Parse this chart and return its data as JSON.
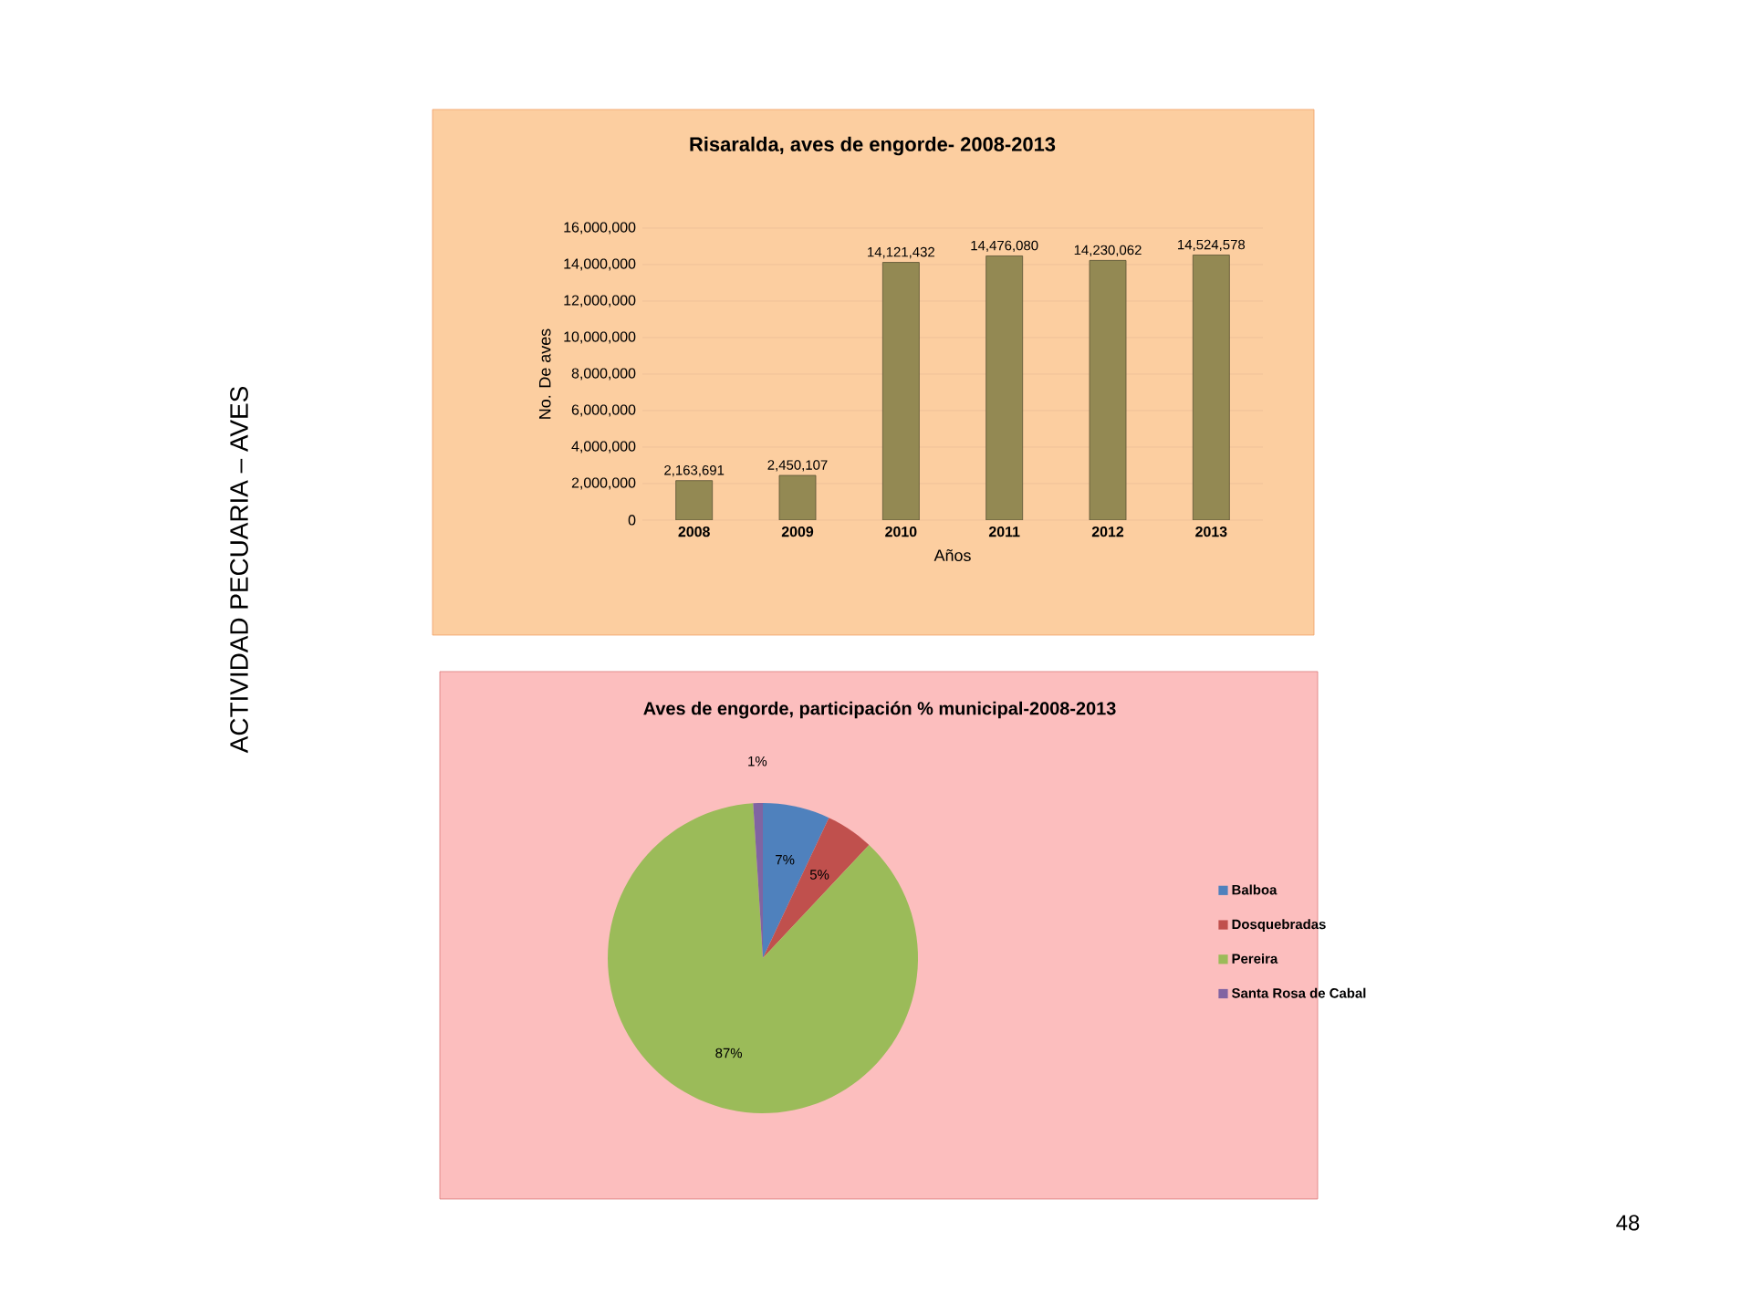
{
  "chart_data": [
    {
      "type": "bar",
      "title": "Risaralda, aves de engorde- 2008-2013",
      "xlabel": "Años",
      "ylabel": "No. De aves",
      "categories": [
        "2008",
        "2009",
        "2010",
        "2011",
        "2012",
        "2013"
      ],
      "values": [
        2163691,
        2450107,
        14121432,
        14476080,
        14230062,
        14524578
      ],
      "value_labels": [
        "2,163,691",
        "2,450,107",
        "14,121,432",
        "14,476,080",
        "14,230,062",
        "14,524,578"
      ],
      "color": "#938953",
      "ylim": [
        0,
        16000000
      ],
      "yticks": [
        0,
        {
          "value": 2000000,
          "label": "2,000,000"
        },
        {
          "value": 4000000,
          "label": "4,000,000"
        },
        {
          "value": 6000000,
          "label": "6,000,000"
        },
        {
          "value": 8000000,
          "label": "8,000,000"
        },
        {
          "value": 10000000,
          "label": "10,000,000"
        },
        {
          "value": 12000000,
          "label": "12,000,000"
        },
        {
          "value": 14000000,
          "label": "14,000,000"
        },
        {
          "value": 16000000,
          "label": "16,000,000"
        }
      ],
      "grid": "y"
    },
    {
      "type": "pie",
      "title": "Aves de engorde, participación % municipal-2008-2013",
      "categories": [
        "Balboa",
        "Dosquebradas",
        "Pereira",
        "Santa Rosa de Cabal"
      ],
      "values": [
        7,
        5,
        87,
        1
      ],
      "value_labels": [
        "7%",
        "5%",
        "87%",
        "1%"
      ],
      "colors": [
        "#4f81bd",
        "#c0504d",
        "#9bbb59",
        "#8064a2"
      ],
      "legend": "right"
    },
    {
      "type": "other",
      "title": "ACTIVIDAD PECUARIA – AVES",
      "annotations": [
        "48"
      ]
    }
  ]
}
